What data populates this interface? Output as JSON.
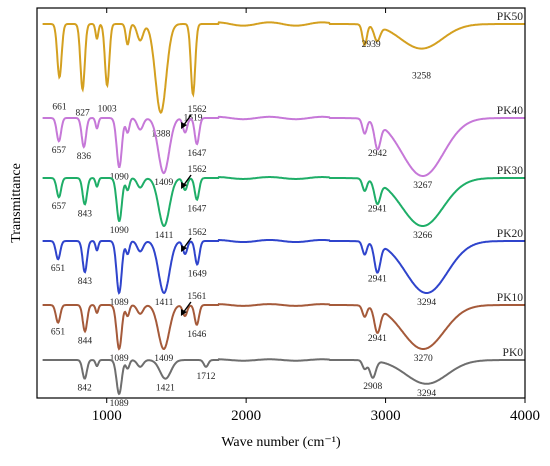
{
  "chart_data": {
    "type": "line",
    "title": "",
    "xlabel": "Wave number (cm⁻¹)",
    "ylabel": "Transmittance",
    "xlim": [
      500,
      4000
    ],
    "xticks": [
      "1000",
      "2000",
      "3000",
      "4000"
    ],
    "yticks_shown": false,
    "grid": false,
    "legend": "labels at right end of each curve",
    "series": [
      {
        "name": "PK50",
        "color": "#d4a020",
        "peaks": [
          {
            "label": "661",
            "x": 661,
            "y": 0.35
          },
          {
            "label": "827",
            "x": 827,
            "y": 0.2
          },
          {
            "label": "1003",
            "x": 1003,
            "y": 0.25
          },
          {
            "label": "1388",
            "x": 1388,
            "y": -0.08
          },
          {
            "label": "1619",
            "x": 1619,
            "y": 0.14
          },
          {
            "label": "2939",
            "x": 2939,
            "y": 0.82
          },
          {
            "label": "3258",
            "x": 3258,
            "y": 0.7
          }
        ]
      },
      {
        "name": "PK40",
        "color": "#c678d8",
        "peaks": [
          {
            "label": "657",
            "x": 657,
            "y": 0.6
          },
          {
            "label": "836",
            "x": 836,
            "y": 0.5
          },
          {
            "label": "1090",
            "x": 1090,
            "y": 0.15
          },
          {
            "label": "1409",
            "x": 1409,
            "y": 0.05
          },
          {
            "label": "1562",
            "x": 1562,
            "y": 0.75,
            "arrow": true
          },
          {
            "label": "1647",
            "x": 1647,
            "y": 0.55
          },
          {
            "label": "2942",
            "x": 2942,
            "y": 0.55
          },
          {
            "label": "3267",
            "x": 3267,
            "y": 0.0
          }
        ]
      },
      {
        "name": "PK30",
        "color": "#1fae68",
        "peaks": [
          {
            "label": "657",
            "x": 657,
            "y": 0.6
          },
          {
            "label": "843",
            "x": 843,
            "y": 0.45
          },
          {
            "label": "1090",
            "x": 1090,
            "y": 0.1
          },
          {
            "label": "1411",
            "x": 1411,
            "y": 0.0
          },
          {
            "label": "1562",
            "x": 1562,
            "y": 0.75,
            "arrow": true
          },
          {
            "label": "1647",
            "x": 1647,
            "y": 0.55
          },
          {
            "label": "2941",
            "x": 2941,
            "y": 0.55
          },
          {
            "label": "3266",
            "x": 3266,
            "y": 0.0
          }
        ]
      },
      {
        "name": "PK20",
        "color": "#2f44cc",
        "peaks": [
          {
            "label": "651",
            "x": 651,
            "y": 0.65
          },
          {
            "label": "843",
            "x": 843,
            "y": 0.4
          },
          {
            "label": "1089",
            "x": 1089,
            "y": 0.0
          },
          {
            "label": "1411",
            "x": 1411,
            "y": 0.0
          },
          {
            "label": "1562",
            "x": 1562,
            "y": 0.75,
            "arrow": true
          },
          {
            "label": "1649",
            "x": 1649,
            "y": 0.55
          },
          {
            "label": "2941",
            "x": 2941,
            "y": 0.45
          },
          {
            "label": "3294",
            "x": 3294,
            "y": 0.0
          }
        ]
      },
      {
        "name": "PK10",
        "color": "#a55a3a",
        "peaks": [
          {
            "label": "651",
            "x": 651,
            "y": 0.6
          },
          {
            "label": "844",
            "x": 844,
            "y": 0.4
          },
          {
            "label": "1089",
            "x": 1089,
            "y": 0.0
          },
          {
            "label": "1409",
            "x": 1409,
            "y": 0.0
          },
          {
            "label": "1561",
            "x": 1561,
            "y": 0.75,
            "arrow": true
          },
          {
            "label": "1646",
            "x": 1646,
            "y": 0.55
          },
          {
            "label": "2941",
            "x": 2941,
            "y": 0.45
          },
          {
            "label": "3270",
            "x": 3270,
            "y": 0.0
          }
        ]
      },
      {
        "name": "PK0",
        "color": "#6e6e6e",
        "peaks": [
          {
            "label": "842",
            "x": 842,
            "y": 0.45
          },
          {
            "label": "1089",
            "x": 1089,
            "y": 0.0
          },
          {
            "label": "1421",
            "x": 1421,
            "y": 0.45
          },
          {
            "label": "1712",
            "x": 1712,
            "y": 0.8
          },
          {
            "label": "2908",
            "x": 2908,
            "y": 0.5
          },
          {
            "label": "3294",
            "x": 3294,
            "y": 0.3
          }
        ]
      }
    ]
  }
}
